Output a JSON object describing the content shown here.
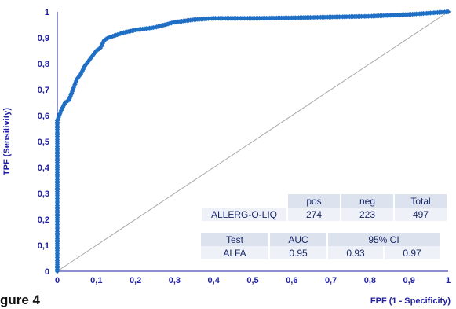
{
  "chart_data": {
    "type": "line",
    "xlabel": "FPF (1 - Specificity)",
    "ylabel": "TPF (Sensitivity)",
    "xlim": [
      0,
      1
    ],
    "ylim": [
      0,
      1
    ],
    "x_ticks": [
      "0",
      "0,1",
      "0,2",
      "0,3",
      "0,4",
      "0,5",
      "0,6",
      "0,7",
      "0,8",
      "0,9",
      "1"
    ],
    "y_ticks": [
      "0",
      "0,1",
      "0,2",
      "0,3",
      "0,4",
      "0,5",
      "0,6",
      "0,7",
      "0,8",
      "0,9",
      "1"
    ],
    "series": [
      {
        "color": "#1f6fc5",
        "x": [
          0,
          0,
          0,
          0.005,
          0.01,
          0.02,
          0.03,
          0.04,
          0.05,
          0.06,
          0.07,
          0.08,
          0.09,
          0.1,
          0.11,
          0.12,
          0.13,
          0.15,
          0.17,
          0.2,
          0.25,
          0.3,
          0.35,
          0.4,
          0.5,
          0.6,
          0.7,
          0.8,
          0.9,
          0.95,
          1
        ],
        "y": [
          0,
          0.14,
          0.58,
          0.6,
          0.62,
          0.65,
          0.66,
          0.7,
          0.74,
          0.76,
          0.79,
          0.81,
          0.83,
          0.85,
          0.86,
          0.89,
          0.9,
          0.91,
          0.92,
          0.93,
          0.94,
          0.96,
          0.97,
          0.975,
          0.975,
          0.977,
          0.98,
          0.983,
          0.99,
          0.995,
          1
        ]
      }
    ],
    "reference_line": {
      "x": [
        0,
        1
      ],
      "y": [
        0,
        1
      ],
      "color": "#a8a8a8"
    }
  },
  "counts_table": {
    "headers": [
      "pos",
      "neg",
      "Total"
    ],
    "row_label": "ALLERG-O-LIQ",
    "values": [
      "274",
      "223",
      "497"
    ]
  },
  "auc_table": {
    "headers": [
      "Test",
      "AUC",
      "95%  CI"
    ],
    "values": [
      "ALFA",
      "0.95",
      "0.93",
      "0.97"
    ]
  },
  "caption": "gure 4"
}
